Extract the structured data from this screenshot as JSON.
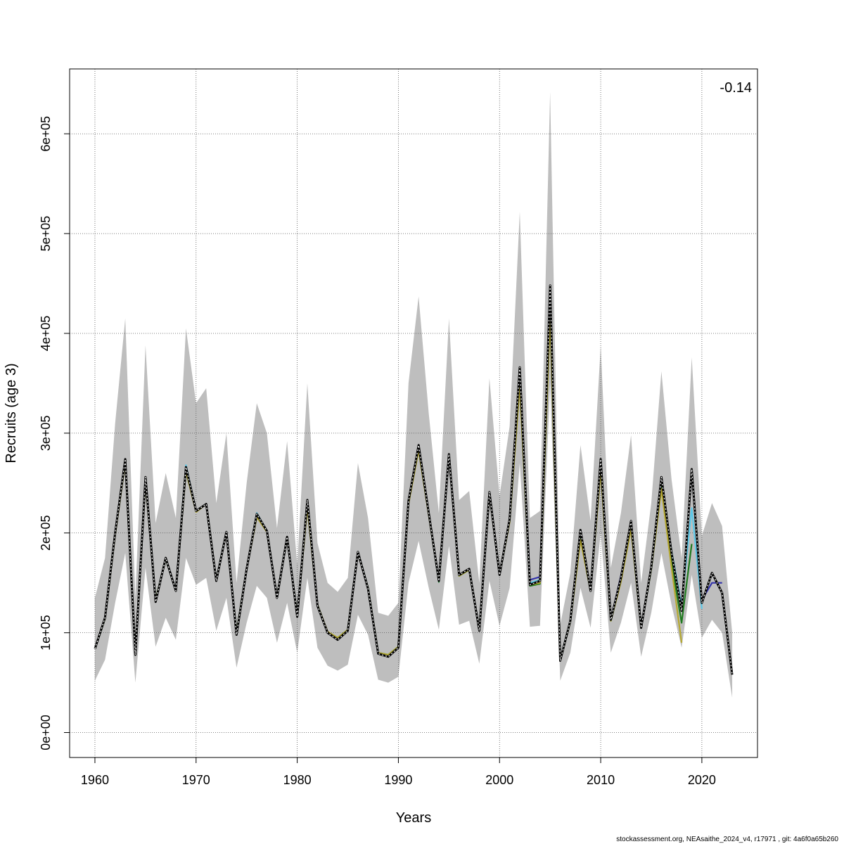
{
  "chart_data": {
    "type": "line",
    "title": "",
    "xlabel": "Years",
    "ylabel": "Recruits (age 3)",
    "xlim": [
      1957.5,
      2025.5
    ],
    "ylim": [
      -25000,
      665000
    ],
    "grid": true,
    "x_ticks": [
      1960,
      1970,
      1980,
      1990,
      2000,
      2010,
      2020
    ],
    "x_tick_labels": [
      "1960",
      "1970",
      "1980",
      "1990",
      "2000",
      "2010",
      "2020"
    ],
    "y_ticks": [
      0,
      100000,
      200000,
      300000,
      400000,
      500000,
      600000
    ],
    "y_tick_labels": [
      "0e+00",
      "1e+05",
      "2e+05",
      "3e+05",
      "4e+05",
      "5e+05",
      "6e+05"
    ],
    "annotation": "-0.14",
    "footer": "stockassessment.org, NEAsaithe_2024_v4, r17971 , git: 4a6f0a65b260",
    "confidence_band": {
      "x": [
        1960,
        1961,
        1962,
        1963,
        1964,
        1965,
        1966,
        1967,
        1968,
        1969,
        1970,
        1971,
        1972,
        1973,
        1974,
        1975,
        1976,
        1977,
        1978,
        1979,
        1980,
        1981,
        1982,
        1983,
        1984,
        1985,
        1986,
        1987,
        1988,
        1989,
        1990,
        1991,
        1992,
        1993,
        1994,
        1995,
        1996,
        1997,
        1998,
        1999,
        2000,
        2001,
        2002,
        2003,
        2004,
        2005,
        2006,
        2007,
        2008,
        2009,
        2010,
        2011,
        2012,
        2013,
        2014,
        2015,
        2016,
        2017,
        2018,
        2019,
        2020,
        2021,
        2022,
        2023
      ],
      "lower": [
        52000,
        73000,
        130000,
        180000,
        50000,
        165000,
        86000,
        115000,
        93000,
        175000,
        148000,
        155000,
        102000,
        135000,
        65000,
        110000,
        147000,
        135000,
        90000,
        130000,
        80000,
        155000,
        85000,
        67000,
        62000,
        68000,
        118000,
        98000,
        53000,
        50000,
        56000,
        150000,
        192000,
        145000,
        103000,
        187000,
        108000,
        112000,
        69000,
        152000,
        107000,
        145000,
        270000,
        106000,
        107000,
        350000,
        52000,
        80000,
        145000,
        105000,
        200000,
        80000,
        110000,
        150000,
        76000,
        120000,
        180000,
        128000,
        85000,
        158000,
        95000,
        113000,
        100000,
        35000
      ],
      "upper": [
        135000,
        175000,
        310000,
        415000,
        135000,
        388000,
        210000,
        260000,
        215000,
        405000,
        330000,
        345000,
        230000,
        300000,
        150000,
        250000,
        330000,
        300000,
        205000,
        292000,
        168000,
        350000,
        190000,
        150000,
        141000,
        155000,
        270000,
        215000,
        120000,
        117000,
        130000,
        350000,
        437000,
        320000,
        220000,
        415000,
        233000,
        242000,
        150000,
        355000,
        237000,
        307000,
        522000,
        215000,
        222000,
        642000,
        108000,
        160000,
        288000,
        212000,
        387000,
        165000,
        220000,
        298000,
        150000,
        230000,
        362000,
        254000,
        175000,
        376000,
        197000,
        230000,
        207000,
        100000
      ]
    },
    "series": [
      {
        "color": "#000000",
        "style": "dotted",
        "x": [
          1960,
          1961,
          1962,
          1963,
          1964,
          1965,
          1966,
          1967,
          1968,
          1969,
          1970,
          1971,
          1972,
          1973,
          1974,
          1975,
          1976,
          1977,
          1978,
          1979,
          1980,
          1981,
          1982,
          1983,
          1984,
          1985,
          1986,
          1987,
          1988,
          1989,
          1990,
          1991,
          1992,
          1993,
          1994,
          1995,
          1996,
          1997,
          1998,
          1999,
          2000,
          2001,
          2002,
          2003,
          2004,
          2005,
          2006,
          2007,
          2008,
          2009,
          2010,
          2011,
          2012,
          2013,
          2014,
          2015,
          2016,
          2017,
          2018,
          2019,
          2020,
          2021,
          2022,
          2023
        ],
        "values": [
          84000,
          115000,
          200000,
          274000,
          78000,
          256000,
          131000,
          175000,
          142000,
          266000,
          222000,
          229000,
          152000,
          201000,
          98000,
          164000,
          219000,
          202000,
          135000,
          196000,
          116000,
          233000,
          127000,
          100000,
          93000,
          102000,
          181000,
          144000,
          79000,
          76000,
          85000,
          232000,
          288000,
          220000,
          152000,
          279000,
          158000,
          164000,
          102000,
          241000,
          158000,
          214000,
          366000,
          148000,
          152000,
          448000,
          72000,
          112000,
          203000,
          142000,
          274000,
          113000,
          155000,
          212000,
          105000,
          166000,
          256000,
          180000,
          122000,
          264000,
          130000,
          160000,
          140000,
          58000
        ]
      },
      {
        "color": "#3333aa",
        "style": "solid",
        "x": [
          1960,
          1961,
          1962,
          1963,
          1964,
          1965,
          1966,
          1967,
          1968,
          1969,
          1970,
          1971,
          1972,
          1973,
          1974,
          1975,
          1976,
          1977,
          1978,
          1979,
          1980,
          1981,
          1982,
          1983,
          1984,
          1985,
          1986,
          1987,
          1988,
          1989,
          1990,
          1991,
          1992,
          1993,
          1994,
          1995,
          1996,
          1997,
          1998,
          1999,
          2000,
          2001,
          2002,
          2003,
          2004,
          2005,
          2006,
          2007,
          2008,
          2009,
          2010,
          2011,
          2012,
          2013,
          2014,
          2015,
          2016,
          2017,
          2018,
          2019,
          2020,
          2021,
          2022
        ],
        "values": [
          84000,
          114000,
          199000,
          273000,
          79000,
          255000,
          132000,
          175000,
          143000,
          265000,
          222000,
          229000,
          153000,
          201000,
          99000,
          164000,
          218000,
          202000,
          135000,
          196000,
          117000,
          232000,
          127000,
          100000,
          94000,
          102000,
          181000,
          144000,
          79000,
          77000,
          85000,
          231000,
          286000,
          219000,
          152000,
          279000,
          158000,
          164000,
          102000,
          241000,
          158000,
          213000,
          360000,
          153000,
          156000,
          440000,
          72000,
          112000,
          200000,
          142000,
          272000,
          113000,
          157000,
          210000,
          105000,
          166000,
          254000,
          180000,
          125000,
          262000,
          133000,
          150000,
          150000
        ]
      },
      {
        "color": "#5bc8e8",
        "style": "solid",
        "x": [
          1960,
          1961,
          1962,
          1963,
          1964,
          1965,
          1966,
          1967,
          1968,
          1969,
          1970,
          1971,
          1972,
          1973,
          1974,
          1975,
          1976,
          1977,
          1978,
          1979,
          1980,
          1981,
          1982,
          1983,
          1984,
          1985,
          1986,
          1987,
          1988,
          1989,
          1990,
          1991,
          1992,
          1993,
          1994,
          1995,
          1996,
          1997,
          1998,
          1999,
          2000,
          2001,
          2002,
          2003,
          2004,
          2005,
          2006,
          2007,
          2008,
          2009,
          2010,
          2011,
          2012,
          2013,
          2014,
          2015,
          2016,
          2017,
          2018,
          2019,
          2020
        ],
        "values": [
          84000,
          114000,
          199000,
          274000,
          80000,
          254000,
          133000,
          174000,
          143000,
          268000,
          222000,
          229000,
          153000,
          201000,
          100000,
          164000,
          220000,
          202000,
          136000,
          196000,
          118000,
          230000,
          128000,
          100000,
          95000,
          103000,
          181000,
          145000,
          80000,
          78000,
          86000,
          230000,
          284000,
          219000,
          151000,
          279000,
          157000,
          163000,
          103000,
          240000,
          158000,
          212000,
          355000,
          150000,
          153000,
          432000,
          73000,
          112000,
          198000,
          143000,
          270000,
          113000,
          153000,
          208000,
          106000,
          164000,
          250000,
          182000,
          128000,
          225000,
          124000
        ]
      },
      {
        "color": "#1f7a1f",
        "style": "solid",
        "x": [
          1960,
          1961,
          1962,
          1963,
          1964,
          1965,
          1966,
          1967,
          1968,
          1969,
          1970,
          1971,
          1972,
          1973,
          1974,
          1975,
          1976,
          1977,
          1978,
          1979,
          1980,
          1981,
          1982,
          1983,
          1984,
          1985,
          1986,
          1987,
          1988,
          1989,
          1990,
          1991,
          1992,
          1993,
          1994,
          1995,
          1996,
          1997,
          1998,
          1999,
          2000,
          2001,
          2002,
          2003,
          2004,
          2005,
          2006,
          2007,
          2008,
          2009,
          2010,
          2011,
          2012,
          2013,
          2014,
          2015,
          2016,
          2017,
          2018,
          2019
        ],
        "values": [
          84000,
          114000,
          199000,
          272000,
          80000,
          253000,
          133000,
          174000,
          143000,
          263000,
          222000,
          229000,
          153000,
          201000,
          100000,
          164000,
          217000,
          202000,
          136000,
          195000,
          118000,
          228000,
          128000,
          100000,
          95000,
          103000,
          181000,
          145000,
          80000,
          78000,
          86000,
          230000,
          284000,
          219000,
          151000,
          279000,
          157000,
          163000,
          103000,
          240000,
          158000,
          212000,
          350000,
          147000,
          149000,
          422000,
          72000,
          111000,
          195000,
          142000,
          266000,
          112000,
          152000,
          206000,
          105000,
          164000,
          247000,
          170000,
          110000,
          189000
        ]
      },
      {
        "color": "#b5a830",
        "style": "solid",
        "x": [
          1960,
          1961,
          1962,
          1963,
          1964,
          1965,
          1966,
          1967,
          1968,
          1969,
          1970,
          1971,
          1972,
          1973,
          1974,
          1975,
          1976,
          1977,
          1978,
          1979,
          1980,
          1981,
          1982,
          1983,
          1984,
          1985,
          1986,
          1987,
          1988,
          1989,
          1990,
          1991,
          1992,
          1993,
          1994,
          1995,
          1996,
          1997,
          1998,
          1999,
          2000,
          2001,
          2002,
          2003,
          2004,
          2005,
          2006,
          2007,
          2008,
          2009,
          2010,
          2011,
          2012,
          2013,
          2014,
          2015,
          2016,
          2017,
          2018
        ],
        "values": [
          84000,
          114000,
          198000,
          271000,
          80000,
          252000,
          133000,
          174000,
          143000,
          262000,
          221000,
          229000,
          153000,
          200000,
          100000,
          164000,
          216000,
          201000,
          136000,
          195000,
          118000,
          226000,
          128000,
          101000,
          95000,
          103000,
          180000,
          145000,
          80000,
          78000,
          86000,
          229000,
          283000,
          218000,
          152000,
          278000,
          157000,
          163000,
          103000,
          239000,
          158000,
          211000,
          348000,
          148000,
          150000,
          418000,
          72000,
          111000,
          193000,
          142000,
          263000,
          112000,
          151000,
          204000,
          105000,
          164000,
          244000,
          165000,
          90000
        ]
      }
    ]
  }
}
